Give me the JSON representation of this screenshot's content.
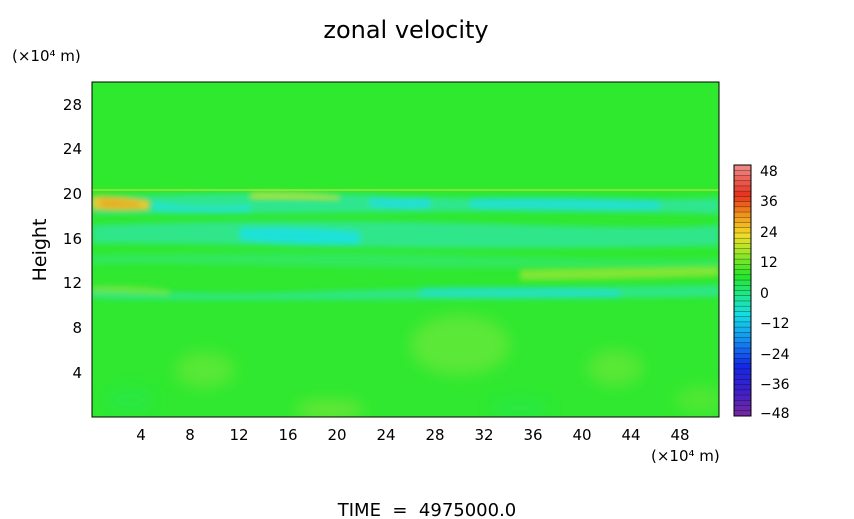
{
  "chart_data": {
    "type": "heatmap",
    "title": "zonal velocity",
    "xlabel": "",
    "ylabel": "Height",
    "x_unit": "(×10⁴ m)",
    "y_unit": "(×10⁴ m)",
    "x_ticks": [
      "4",
      "8",
      "12",
      "16",
      "20",
      "24",
      "28",
      "32",
      "36",
      "40",
      "44",
      "48"
    ],
    "y_ticks": [
      "4",
      "8",
      "12",
      "16",
      "20",
      "24",
      "28"
    ],
    "xlim": [
      0,
      51.5
    ],
    "ylim": [
      0,
      30
    ],
    "colorbar": {
      "ticks": [
        "48",
        "36",
        "24",
        "12",
        "0",
        "−12",
        "−24",
        "−36",
        "−48"
      ],
      "range": [
        -48,
        48
      ]
    },
    "footer": "TIME  =  4975000.0",
    "colors": {
      "background_field": "#2fe82f",
      "jet_core": "#1fe3d8",
      "positive_max": "#f0c830"
    }
  }
}
